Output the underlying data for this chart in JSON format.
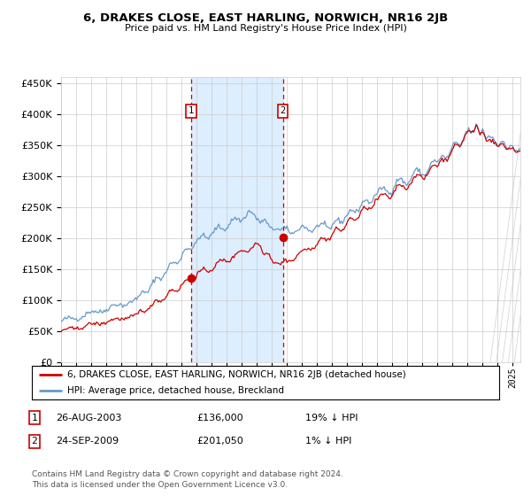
{
  "title": "6, DRAKES CLOSE, EAST HARLING, NORWICH, NR16 2JB",
  "subtitle": "Price paid vs. HM Land Registry's House Price Index (HPI)",
  "ylim": [
    0,
    460000
  ],
  "xlim_start": 1995.0,
  "xlim_end": 2025.5,
  "sale1_date": 2003.65,
  "sale1_price": 136000,
  "sale2_date": 2009.73,
  "sale2_price": 201050,
  "legend_line1": "6, DRAKES CLOSE, EAST HARLING, NORWICH, NR16 2JB (detached house)",
  "legend_line2": "HPI: Average price, detached house, Breckland",
  "table_row1_label": "1",
  "table_row1_date": "26-AUG-2003",
  "table_row1_price": "£136,000",
  "table_row1_hpi": "19% ↓ HPI",
  "table_row2_label": "2",
  "table_row2_date": "24-SEP-2009",
  "table_row2_price": "£201,050",
  "table_row2_hpi": "1% ↓ HPI",
  "footer_line1": "Contains HM Land Registry data © Crown copyright and database right 2024.",
  "footer_line2": "This data is licensed under the Open Government Licence v3.0.",
  "hpi_color": "#6699cc",
  "price_color": "#cc0000",
  "shade_color": "#ddeeff",
  "grid_color": "#cccccc",
  "bg_color": "#ffffff",
  "box_color": "#cc0000"
}
